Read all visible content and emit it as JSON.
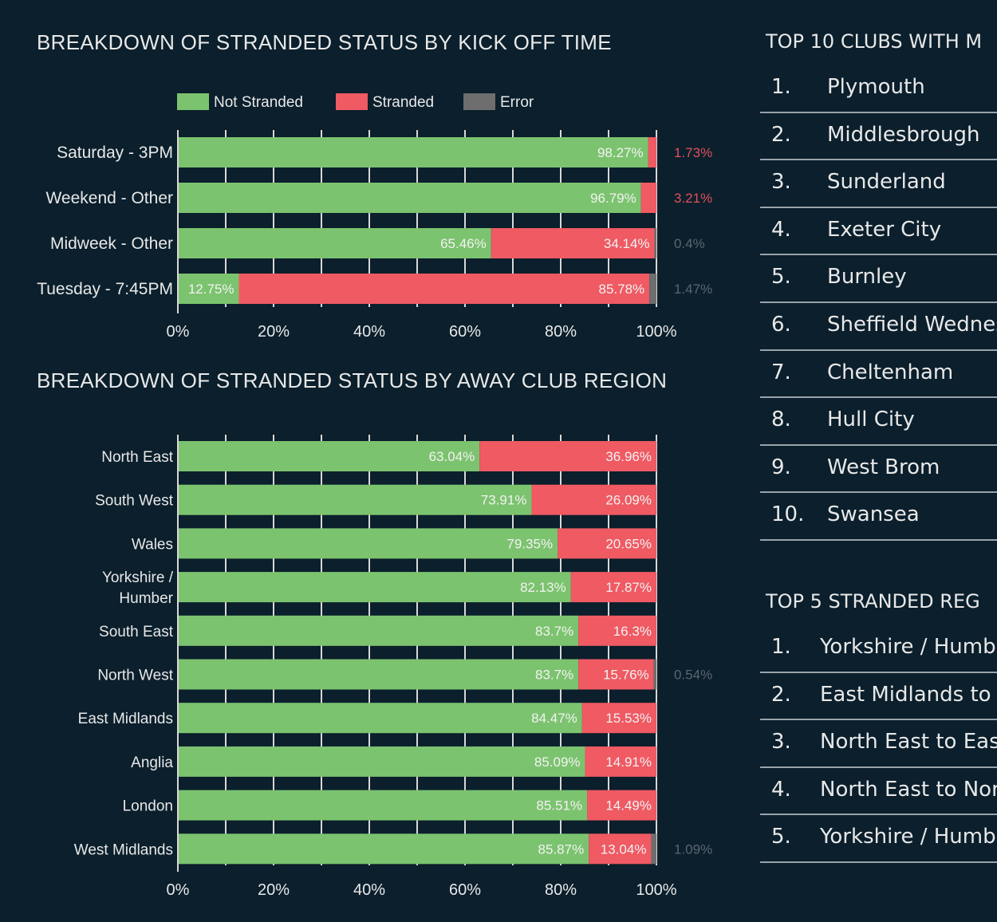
{
  "colors": {
    "not_stranded": "#7cc36f",
    "stranded": "#ef5a63",
    "error": "#6e6e6e",
    "background": "#0b1f2c"
  },
  "chart_data": [
    {
      "type": "bar",
      "orientation": "horizontal",
      "stacked": "percent",
      "title": "BREAKDOWN OF STRANDED STATUS BY KICK OFF TIME",
      "legend": {
        "placement": "top",
        "entries": [
          "Not Stranded",
          "Stranded",
          "Error"
        ]
      },
      "categories": [
        "Saturday - 3PM",
        "Weekend - Other",
        "Midweek - Other",
        "Tuesday - 7:45PM"
      ],
      "series": [
        {
          "name": "Not Stranded",
          "values": [
            98.27,
            96.79,
            65.46,
            12.75
          ]
        },
        {
          "name": "Stranded",
          "values": [
            1.73,
            3.21,
            34.14,
            85.78
          ]
        },
        {
          "name": "Error",
          "values": [
            0,
            0,
            0.4,
            1.47
          ]
        }
      ],
      "xlim": [
        0,
        100
      ],
      "xticks": [
        "0%",
        "20%",
        "40%",
        "60%",
        "80%",
        "100%"
      ],
      "grid": true
    },
    {
      "type": "bar",
      "orientation": "horizontal",
      "stacked": "percent",
      "title": "BREAKDOWN OF STRANDED STATUS BY AWAY CLUB REGION",
      "categories": [
        "North East",
        "South West",
        "Wales",
        "Yorkshire / Humber",
        "South East",
        "North West",
        "East Midlands",
        "Anglia",
        "London",
        "West Midlands"
      ],
      "series": [
        {
          "name": "Not Stranded",
          "values": [
            63.04,
            73.91,
            79.35,
            82.13,
            83.7,
            83.7,
            84.47,
            85.09,
            85.51,
            85.87
          ]
        },
        {
          "name": "Stranded",
          "values": [
            36.96,
            26.09,
            20.65,
            17.87,
            16.3,
            15.76,
            15.53,
            14.91,
            14.49,
            13.04
          ]
        },
        {
          "name": "Error",
          "values": [
            0,
            0,
            0,
            0,
            0,
            0.54,
            0,
            0,
            0,
            1.09
          ]
        }
      ],
      "xlim": [
        0,
        100
      ],
      "xticks": [
        "0%",
        "20%",
        "40%",
        "60%",
        "80%",
        "100%"
      ],
      "grid": true
    }
  ],
  "top_clubs": {
    "title": "TOP 10 CLUBS WITH M",
    "items": [
      {
        "rank": "1.",
        "name": "Plymouth"
      },
      {
        "rank": "2.",
        "name": "Middlesbrough"
      },
      {
        "rank": "3.",
        "name": "Sunderland"
      },
      {
        "rank": "4.",
        "name": "Exeter City"
      },
      {
        "rank": "5.",
        "name": "Burnley"
      },
      {
        "rank": "6.",
        "name": "Sheffield Wednes"
      },
      {
        "rank": "7.",
        "name": "Cheltenham"
      },
      {
        "rank": "8.",
        "name": "Hull City"
      },
      {
        "rank": "9.",
        "name": "West Brom"
      },
      {
        "rank": "10.",
        "name": "Swansea"
      }
    ]
  },
  "top_regions": {
    "title": "TOP 5 STRANDED REG",
    "items": [
      {
        "rank": "1.",
        "name": "Yorkshire / Humb"
      },
      {
        "rank": "2.",
        "name": "East Midlands to"
      },
      {
        "rank": "3.",
        "name": "North East to Eas"
      },
      {
        "rank": "4.",
        "name": "North East to Nort"
      },
      {
        "rank": "5.",
        "name": "Yorkshire / Humb"
      }
    ]
  }
}
